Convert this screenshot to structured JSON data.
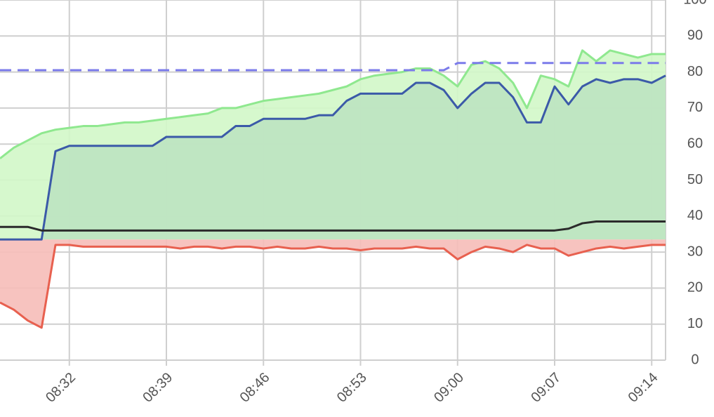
{
  "chart_data": {
    "type": "line",
    "x": [
      "08:27",
      "08:28",
      "08:29",
      "08:30",
      "08:31",
      "08:32",
      "08:33",
      "08:34",
      "08:35",
      "08:36",
      "08:37",
      "08:38",
      "08:39",
      "08:40",
      "08:41",
      "08:42",
      "08:43",
      "08:44",
      "08:45",
      "08:46",
      "08:47",
      "08:48",
      "08:49",
      "08:50",
      "08:51",
      "08:52",
      "08:53",
      "08:54",
      "08:55",
      "08:56",
      "08:57",
      "08:58",
      "08:59",
      "09:00",
      "09:01",
      "09:02",
      "09:03",
      "09:04",
      "09:05",
      "09:06",
      "09:07",
      "09:08",
      "09:09",
      "09:10",
      "09:11",
      "09:12",
      "09:13",
      "09:14",
      "09:15"
    ],
    "xlim": [
      "08:27",
      "09:15"
    ],
    "xticks": [
      "08:32",
      "08:39",
      "08:46",
      "08:53",
      "09:00",
      "09:07",
      "09:14"
    ],
    "ylim": [
      0,
      100
    ],
    "yticks": [
      0,
      10,
      20,
      30,
      40,
      50,
      60,
      70,
      80,
      90,
      100
    ],
    "grid": true,
    "fill_base": 33.5,
    "series": [
      {
        "color": "#8fe88f",
        "fill": "#d2f7c8",
        "style": "solid",
        "values": [
          56,
          59,
          61,
          63,
          64,
          64.5,
          65,
          65,
          65.5,
          66,
          66,
          66.5,
          67,
          67.5,
          68,
          68.5,
          70,
          70,
          71,
          72,
          72.5,
          73,
          73.5,
          74,
          75,
          76,
          78,
          79,
          79.5,
          80,
          81,
          81,
          79,
          76,
          82,
          83,
          81,
          77,
          70,
          79,
          78,
          76,
          86,
          83,
          86,
          85,
          84,
          85,
          85
        ]
      },
      {
        "color": "#3b5aa8",
        "fill": "#bde3c1",
        "style": "solid",
        "values": [
          33.5,
          33.5,
          33.5,
          33.5,
          58,
          59.5,
          59.5,
          59.5,
          59.5,
          59.5,
          59.5,
          59.5,
          62,
          62,
          62,
          62,
          62,
          65,
          65,
          67,
          67,
          67,
          67,
          68,
          68,
          72,
          74,
          74,
          74,
          74,
          77,
          77,
          75,
          70,
          74,
          77,
          77,
          73,
          66,
          66,
          76,
          71,
          76,
          78,
          77,
          78,
          78,
          77,
          79
        ]
      },
      {
        "color": "#7b7bea",
        "style": "dashed",
        "values": [
          80.5,
          80.5,
          80.5,
          80.5,
          80.5,
          80.5,
          80.5,
          80.5,
          80.5,
          80.5,
          80.5,
          80.5,
          80.5,
          80.5,
          80.5,
          80.5,
          80.5,
          80.5,
          80.5,
          80.5,
          80.5,
          80.5,
          80.5,
          80.5,
          80.5,
          80.5,
          80.5,
          80.5,
          80.5,
          80.5,
          80.5,
          80.5,
          80.5,
          82.5,
          82.5,
          82.5,
          82.5,
          82.5,
          82.5,
          82.5,
          82.5,
          82.5,
          82.5,
          82.5,
          82.5,
          82.5,
          82.5,
          82.5,
          82.5
        ]
      },
      {
        "color": "#2b2b2b",
        "style": "solid",
        "values": [
          37,
          37,
          37,
          36,
          36,
          36,
          36,
          36,
          36,
          36,
          36,
          36,
          36,
          36,
          36,
          36,
          36,
          36,
          36,
          36,
          36,
          36,
          36,
          36,
          36,
          36,
          36,
          36,
          36,
          36,
          36,
          36,
          36,
          36,
          36,
          36,
          36,
          36,
          36,
          36,
          36,
          36.5,
          38,
          38.5,
          38.5,
          38.5,
          38.5,
          38.5,
          38.5
        ]
      },
      {
        "color": "#e8604f",
        "fill": "#f6bcb8",
        "style": "solid",
        "values": [
          16,
          14,
          11,
          9,
          32,
          32,
          31.5,
          31.5,
          31.5,
          31.5,
          31.5,
          31.5,
          31.5,
          31,
          31.5,
          31.5,
          31,
          31.5,
          31.5,
          31,
          31.5,
          31,
          31,
          31.5,
          31,
          31,
          30.5,
          31,
          31,
          31,
          31.5,
          31,
          31,
          28,
          30,
          31.5,
          31,
          30,
          32,
          31,
          31,
          29,
          30,
          31,
          31.5,
          31,
          31.5,
          32,
          32
        ]
      }
    ]
  }
}
